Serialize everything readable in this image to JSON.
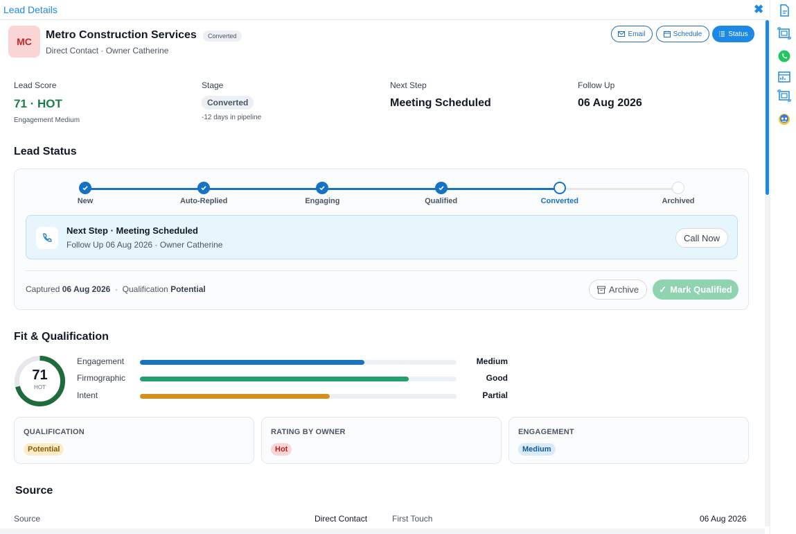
{
  "window": {
    "title": "Lead Details"
  },
  "lead": {
    "initials": "MC",
    "name": "Metro Construction Services",
    "badge": "Converted",
    "subtitle": "Direct Contact · Owner Catherine"
  },
  "actions": {
    "email": "Email",
    "schedule": "Schedule",
    "status": "Status"
  },
  "metrics": {
    "score": {
      "label": "Lead Score",
      "value": "71 · HOT",
      "sub": "Engagement Medium"
    },
    "stage": {
      "label": "Stage",
      "value": "Converted",
      "sub": "-12 days in pipeline"
    },
    "next_step": {
      "label": "Next Step",
      "value": "Meeting Scheduled"
    },
    "follow_up": {
      "label": "Follow Up",
      "value": "06 Aug 2026"
    }
  },
  "lead_status": {
    "title": "Lead Status",
    "steps": [
      {
        "label": "New",
        "state": "done"
      },
      {
        "label": "Auto-Replied",
        "state": "done"
      },
      {
        "label": "Engaging",
        "state": "done"
      },
      {
        "label": "Qualified",
        "state": "done"
      },
      {
        "label": "Converted",
        "state": "current"
      },
      {
        "label": "Archived",
        "state": "todo"
      }
    ],
    "next": {
      "title": "Next Step · Meeting Scheduled",
      "detail": "Follow Up 06 Aug 2026 · Owner Catherine",
      "call_label": "Call Now"
    },
    "captured_label": "Captured",
    "captured_date": "06 Aug 2026",
    "qualification_label": "Qualification",
    "qualification_value": "Potential",
    "archive_label": "Archive",
    "mark_qualified_label": "Mark Qualified"
  },
  "fit": {
    "title": "Fit & Qualification",
    "score": "71",
    "score_fraction": 0.71,
    "score_label": "HOT",
    "bars": [
      {
        "label": "Engagement",
        "value": "Medium",
        "fraction": 0.71,
        "color": "#1673c4"
      },
      {
        "label": "Firmographic",
        "value": "Good",
        "fraction": 0.85,
        "color": "#22a06b"
      },
      {
        "label": "Intent",
        "value": "Partial",
        "fraction": 0.6,
        "color": "#d4901a"
      }
    ],
    "cards": [
      {
        "title": "QUALIFICATION",
        "badge": "Potential",
        "bg": "#fdecc8",
        "fg": "#8a5a00"
      },
      {
        "title": "RATING BY OWNER",
        "badge": "Hot",
        "bg": "#f9d6d5",
        "fg": "#b42318"
      },
      {
        "title": "ENGAGEMENT",
        "badge": "Medium",
        "bg": "#d9ecfb",
        "fg": "#145a94"
      }
    ]
  },
  "source": {
    "title": "Source",
    "source_label": "Source",
    "source_value": "Direct Contact",
    "first_touch_label": "First Touch",
    "first_touch_value": "06 Aug 2026"
  },
  "colors": {
    "accent": "#1e88e5",
    "hot": "#1a7f4b",
    "gauge": "#1f6b3c"
  },
  "rail_icons": [
    "document-icon",
    "frame-icon",
    "whatsapp-icon",
    "analytics-icon",
    "frame-icon",
    "bot-icon"
  ]
}
